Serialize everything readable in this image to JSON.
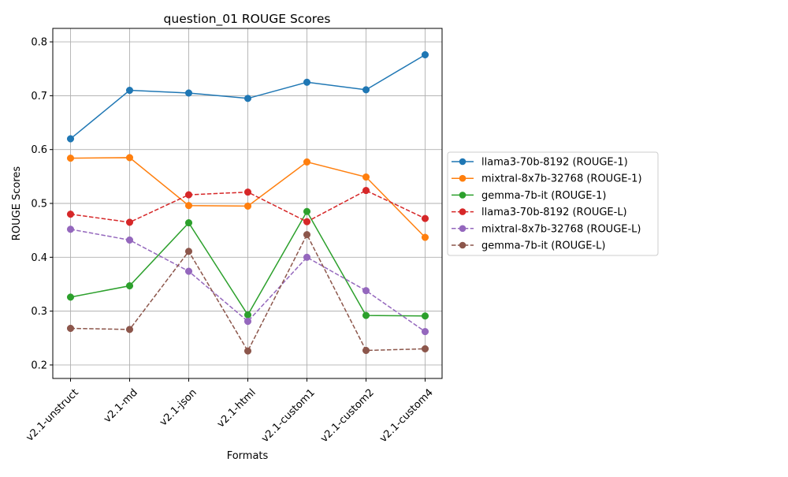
{
  "chart_data": {
    "type": "line",
    "title": "question_01 ROUGE Scores",
    "xlabel": "Formats",
    "ylabel": "ROUGE Scores",
    "categories": [
      "v2.1-unstruct",
      "v2.1-md",
      "v2.1-json",
      "v2.1-html",
      "v2.1-custom1",
      "v2.1-custom2",
      "v2.1-custom4"
    ],
    "ylim": [
      0.175,
      0.825
    ],
    "yticks": [
      0.2,
      0.3,
      0.4,
      0.5,
      0.6,
      0.7,
      0.8
    ],
    "ytick_labels": [
      "0.2",
      "0.3",
      "0.4",
      "0.5",
      "0.6",
      "0.7",
      "0.8"
    ],
    "grid": true,
    "legend_position": "outside-right",
    "series": [
      {
        "name": "llama3-70b-8192 (ROUGE-1)",
        "color": "#1f77b4",
        "style": "solid",
        "marker": "circle",
        "values": [
          0.62,
          0.71,
          0.705,
          0.695,
          0.725,
          0.711,
          0.776
        ]
      },
      {
        "name": "mixtral-8x7b-32768 (ROUGE-1)",
        "color": "#ff7f0e",
        "style": "solid",
        "marker": "circle",
        "values": [
          0.584,
          0.585,
          0.496,
          0.495,
          0.577,
          0.549,
          0.437
        ]
      },
      {
        "name": "gemma-7b-it (ROUGE-1)",
        "color": "#2ca02c",
        "style": "solid",
        "marker": "circle",
        "values": [
          0.326,
          0.347,
          0.464,
          0.293,
          0.485,
          0.292,
          0.291
        ]
      },
      {
        "name": "llama3-70b-8192 (ROUGE-L)",
        "color": "#d62728",
        "style": "dashed",
        "marker": "circle",
        "values": [
          0.48,
          0.465,
          0.516,
          0.521,
          0.466,
          0.524,
          0.472
        ]
      },
      {
        "name": "mixtral-8x7b-32768 (ROUGE-L)",
        "color": "#9467bd",
        "style": "dashed",
        "marker": "circle",
        "values": [
          0.452,
          0.432,
          0.374,
          0.281,
          0.4,
          0.338,
          0.262
        ]
      },
      {
        "name": "gemma-7b-it (ROUGE-L)",
        "color": "#8c564b",
        "style": "dashed",
        "marker": "circle",
        "values": [
          0.268,
          0.266,
          0.411,
          0.226,
          0.442,
          0.227,
          0.23
        ]
      }
    ]
  }
}
